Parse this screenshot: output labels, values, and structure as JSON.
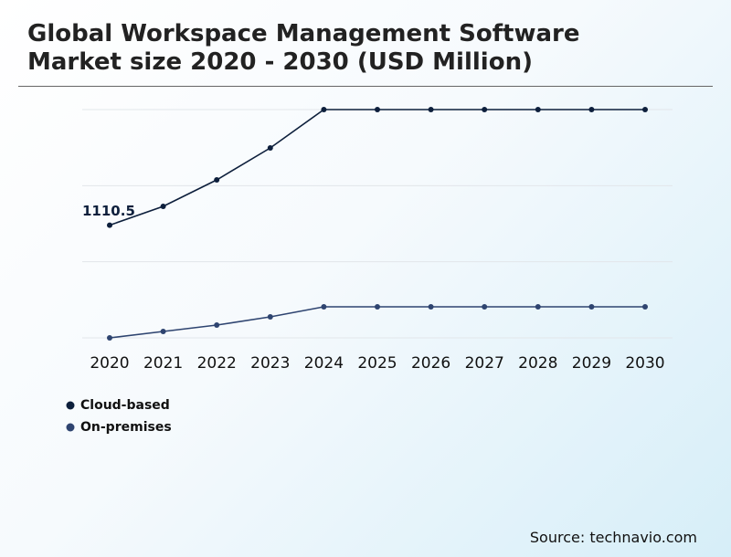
{
  "chart_data": {
    "type": "line",
    "title": "Global Workspace Management Software Market size 2020 - 2030 (USD Million)",
    "categories": [
      "2020",
      "2021",
      "2022",
      "2023",
      "2024",
      "2025",
      "2026",
      "2027",
      "2028",
      "2029",
      "2030"
    ],
    "series": [
      {
        "name": "Cloud-based",
        "color": "#0d1f3c",
        "values": [
          1110.5,
          1296,
          1557,
          1872,
          2250,
          2250,
          2250,
          2250,
          2250,
          2250,
          2250
        ]
      },
      {
        "name": "On-premises",
        "color": "#2e4470",
        "values": [
          0,
          63,
          126,
          207,
          306,
          306,
          306,
          306,
          306,
          306,
          306
        ]
      }
    ],
    "data_label": "chart_data.series.0.values.0",
    "ylim": [
      0,
      2250
    ],
    "yticks": [
      0,
      750,
      1500,
      2250
    ],
    "grid": true,
    "source": "Source: technavio.com"
  }
}
